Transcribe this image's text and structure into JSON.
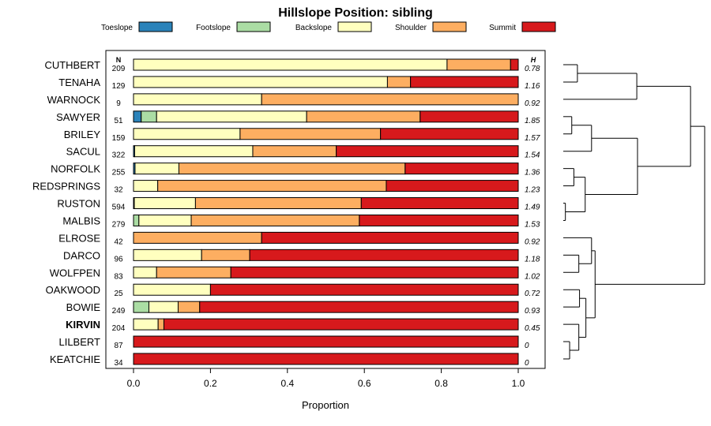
{
  "chart_data": {
    "type": "bar",
    "title": "Hillslope Position: sibling",
    "xlabel": "Proportion",
    "xlim": [
      0,
      1
    ],
    "xticks": [
      "0.0",
      "0.2",
      "0.4",
      "0.6",
      "0.8",
      "1.0"
    ],
    "n_header": "N",
    "h_header": "H",
    "legend_position": "top",
    "series": [
      {
        "name": "Toeslope",
        "color": "#2b83ba"
      },
      {
        "name": "Footslope",
        "color": "#abdda4"
      },
      {
        "name": "Backslope",
        "color": "#ffffbf"
      },
      {
        "name": "Shoulder",
        "color": "#fdae61"
      },
      {
        "name": "Summit",
        "color": "#d7191c"
      }
    ],
    "rows": [
      {
        "label": "CUTHBERT",
        "n": "209",
        "h": "0.78",
        "values": [
          0,
          0,
          0.815,
          0.165,
          0.02
        ]
      },
      {
        "label": "TENAHA",
        "n": "129",
        "h": "1.16",
        "values": [
          0,
          0,
          0.66,
          0.06,
          0.28
        ]
      },
      {
        "label": "WARNOCK",
        "n": "9",
        "h": "0.92",
        "values": [
          0,
          0,
          0.333,
          0.667,
          0
        ]
      },
      {
        "label": "SAWYER",
        "n": "51",
        "h": "1.85",
        "values": [
          0.02,
          0.04,
          0.39,
          0.295,
          0.255
        ]
      },
      {
        "label": "BRILEY",
        "n": "159",
        "h": "1.57",
        "values": [
          0,
          0,
          0.277,
          0.365,
          0.358
        ]
      },
      {
        "label": "SACUL",
        "n": "322",
        "h": "1.54",
        "values": [
          0.003,
          0,
          0.307,
          0.217,
          0.473
        ]
      },
      {
        "label": "NORFOLK",
        "n": "255",
        "h": "1.36",
        "values": [
          0.004,
          0,
          0.114,
          0.588,
          0.294
        ]
      },
      {
        "label": "REDSPRINGS",
        "n": "32",
        "h": "1.23",
        "values": [
          0,
          0,
          0.063,
          0.594,
          0.343
        ]
      },
      {
        "label": "RUSTON",
        "n": "594",
        "h": "1.49",
        "values": [
          0.002,
          0,
          0.159,
          0.431,
          0.408
        ]
      },
      {
        "label": "MALBIS",
        "n": "279",
        "h": "1.53",
        "values": [
          0,
          0.014,
          0.136,
          0.437,
          0.413
        ]
      },
      {
        "label": "ELROSE",
        "n": "42",
        "h": "0.92",
        "values": [
          0,
          0,
          0,
          0.333,
          0.667
        ]
      },
      {
        "label": "DARCO",
        "n": "96",
        "h": "1.18",
        "values": [
          0,
          0,
          0.177,
          0.125,
          0.698
        ]
      },
      {
        "label": "WOLFPEN",
        "n": "83",
        "h": "1.02",
        "values": [
          0,
          0,
          0.06,
          0.193,
          0.747
        ]
      },
      {
        "label": "OAKWOOD",
        "n": "25",
        "h": "0.72",
        "values": [
          0,
          0,
          0.2,
          0,
          0.8
        ]
      },
      {
        "label": "BOWIE",
        "n": "249",
        "h": "0.93",
        "values": [
          0,
          0.04,
          0.076,
          0.056,
          0.828
        ]
      },
      {
        "label": "KIRVIN",
        "n": "204",
        "h": "0.45",
        "values": [
          0,
          0,
          0.064,
          0.015,
          0.921
        ],
        "bold": true
      },
      {
        "label": "LILBERT",
        "n": "87",
        "h": "0",
        "values": [
          0,
          0,
          0,
          0,
          1
        ]
      },
      {
        "label": "KEATCHIE",
        "n": "34",
        "h": "0",
        "values": [
          0,
          0,
          0,
          0,
          1
        ]
      }
    ],
    "dendrogram": {
      "leaves_order": [
        "CUTHBERT",
        "TENAHA",
        "WARNOCK",
        "SAWYER",
        "BRILEY",
        "SACUL",
        "NORFOLK",
        "REDSPRINGS",
        "RUSTON",
        "MALBIS",
        "ELROSE",
        "DARCO",
        "WOLFPEN",
        "OAKWOOD",
        "BOWIE",
        "KIRVIN",
        "LILBERT",
        "KEATCHIE"
      ],
      "merges": [
        {
          "a": "CUTHBERT",
          "b": "TENAHA",
          "height": 0.1
        },
        {
          "a": "RUSTON",
          "b": "MALBIS",
          "height": 0.015
        },
        {
          "a": "SAWYER",
          "b": "BRILEY",
          "height": 0.06
        },
        {
          "a": "NORFOLK",
          "b": "REDSPRINGS",
          "height": 0.075
        },
        {
          "a": "LILBERT",
          "b": "KEATCHIE",
          "height": 0.045
        },
        {
          "a": "KIRVIN",
          "b": "LILBERT+KEATCHIE",
          "height": 0.11
        },
        {
          "a": "DARCO",
          "b": "WOLFPEN",
          "height": 0.11
        },
        {
          "a": "OAKWOOD",
          "b": "BOWIE",
          "height": 0.115
        },
        {
          "a": "NORFOLK+REDSPRINGS",
          "b": "RUSTON+MALBIS",
          "height": 0.155
        },
        {
          "a": "ELROSE",
          "b": "DARCO+WOLFPEN",
          "height": 0.2
        },
        {
          "a": "SAWYER+BRILEY",
          "b": "SACUL",
          "height": 0.2
        },
        {
          "a": "OAKWOOD+BOWIE",
          "b": "KIRVIN+LILBERT+KEATCHIE",
          "height": 0.16
        },
        {
          "a": "ELROSE+DARCO+WOLFPEN",
          "b": "OAKWOOD+BOWIE+KIRVIN+LILBERT+KEATCHIE",
          "height": 0.225
        },
        {
          "a": "SAWYER+BRILEY+SACUL",
          "b": "NORFOLK+REDSPRINGS+RUSTON+MALBIS",
          "height": 0.525
        },
        {
          "a": "CUTHBERT+TENAHA",
          "b": "WARNOCK",
          "height": 0.52
        },
        {
          "a": "CUTHBERT+TENAHA+WARNOCK",
          "b": "SAWYER+BRILEY+SACUL+NORFOLK+REDSPRINGS+RUSTON+MALBIS",
          "height": 0.9
        },
        {
          "a": "CUTHBERT+TENAHA+WARNOCK+SAWYER+BRILEY+SACUL+NORFOLK+REDSPRINGS+RUSTON+MALBIS",
          "b": "ELROSE+DARCO+WOLFPEN+OAKWOOD+BOWIE+KIRVIN+LILBERT+KEATCHIE",
          "height": 1.0
        }
      ]
    }
  }
}
